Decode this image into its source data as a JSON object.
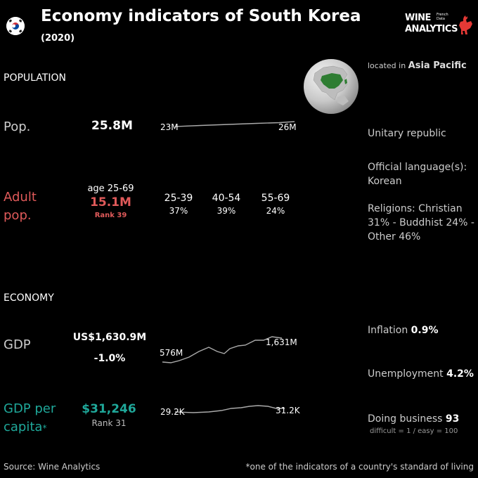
{
  "header": {
    "title": "Economy indicators of South Korea",
    "subtitle": "(2020)",
    "logo_line1": "WINE",
    "logo_line2": "ANALYTICS",
    "logo_small_1": "French",
    "logo_small_2": "Data"
  },
  "population": {
    "section_label": "POPULATION",
    "pop_label": "Pop.",
    "pop_value": "25.8M",
    "pop_start": "23M",
    "pop_end": "26M",
    "adult_label_1": "Adult",
    "adult_label_2": "pop.",
    "age_range": "age 25-69",
    "adult_value": "15.1M",
    "adult_rank": "Rank 39",
    "age_groups": [
      {
        "label": "25-39",
        "pct": "37%"
      },
      {
        "label": "40-54",
        "pct": "39%"
      },
      {
        "label": "55-69",
        "pct": "24%"
      }
    ]
  },
  "info": {
    "located_prefix": "located in",
    "region": "Asia Pacific",
    "government": "Unitary republic",
    "language_label": "Official language(s):",
    "language": "Korean",
    "religions_1": "Religions: Christian",
    "religions_2": "31% - Buddhist 24% -",
    "religions_3": "Other 46%"
  },
  "economy": {
    "section_label": "ECONOMY",
    "gdp_label": "GDP",
    "gdp_value": "US$1,630.9M",
    "gdp_growth": "-1.0%",
    "gdp_start": "576M",
    "gdp_end": "1,631M",
    "gdppc_label_1": "GDP per",
    "gdppc_label_2": "capita",
    "gdppc_asterisk": "*",
    "gdppc_value": "$31,246",
    "gdppc_rank": "Rank 31",
    "gdppc_start": "29.2K",
    "gdppc_end": "31.2K",
    "inflation_label": "Inflation",
    "inflation_value": "0.9%",
    "unemployment_label": "Unemployment",
    "unemployment_value": "4.2%",
    "business_label": "Doing business",
    "business_value": "93",
    "business_note": "difficult = 1 / easy = 100"
  },
  "footer": {
    "source": "Source: Wine  Analytics",
    "note": "*one of the indicators of a country's standard of living"
  },
  "colors": {
    "background": "#000000",
    "adult": "#e05a5a",
    "gdp_per_capita": "#1fa89a",
    "sparkline": "#aaaaaa",
    "globe_land": "#2e7d32",
    "logo_rooster": "#e53935"
  },
  "icons": {
    "flag": "south-korea-flag-icon",
    "globe": "globe-icon",
    "logo": "rooster-icon"
  }
}
